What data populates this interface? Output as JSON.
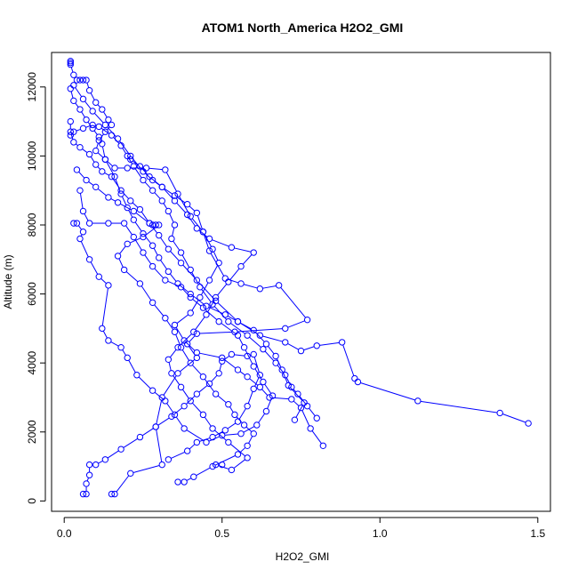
{
  "chart_data": {
    "type": "scatter",
    "title": "ATOM1 North_America H2O2_GMI",
    "xlabel": "H2O2_GMI",
    "ylabel": "Altitude (m)",
    "xlim": [
      -0.04,
      1.54
    ],
    "ylim": [
      -300,
      13000
    ],
    "xticks": [
      0,
      0.5,
      1,
      1.5
    ],
    "xtick_labels": [
      "0.0",
      "0.5",
      "1.0",
      "1.5"
    ],
    "yticks": [
      0,
      2000,
      4000,
      6000,
      8000,
      10000,
      12000
    ],
    "ytick_labels": [
      "0",
      "2000",
      "4000",
      "6000",
      "8000",
      "10000",
      "12000"
    ],
    "grid": false,
    "color": "#0000ff",
    "series": [
      {
        "points": [
          [
            0.02,
            12750
          ],
          [
            0.02,
            12700
          ],
          [
            0.02,
            12650
          ],
          [
            0.03,
            12350
          ],
          [
            0.04,
            12200
          ],
          [
            0.05,
            12200
          ],
          [
            0.06,
            12200
          ],
          [
            0.07,
            12200
          ],
          [
            0.08,
            11900
          ],
          [
            0.1,
            11550
          ],
          [
            0.12,
            11350
          ],
          [
            0.14,
            11050
          ],
          [
            0.15,
            10900
          ],
          [
            0.13,
            10700
          ],
          [
            0.11,
            10450
          ],
          [
            0.1,
            10150
          ],
          [
            0.13,
            9900
          ],
          [
            0.16,
            9650
          ],
          [
            0.2,
            9650
          ],
          [
            0.26,
            9650
          ],
          [
            0.32,
            9600
          ],
          [
            0.36,
            8900
          ],
          [
            0.4,
            8250
          ],
          [
            0.44,
            7800
          ],
          [
            0.47,
            7300
          ],
          [
            0.49,
            6900
          ],
          [
            0.46,
            6400
          ],
          [
            0.43,
            5900
          ],
          [
            0.4,
            5450
          ],
          [
            0.35,
            5100
          ],
          [
            0.38,
            4650
          ],
          [
            0.42,
            4300
          ],
          [
            0.5,
            4150
          ],
          [
            0.55,
            3800
          ],
          [
            0.58,
            3600
          ],
          [
            0.62,
            3300
          ],
          [
            0.65,
            3000
          ],
          [
            0.72,
            2950
          ],
          [
            0.75,
            2700
          ],
          [
            0.78,
            2100
          ],
          [
            0.82,
            1600
          ]
        ]
      },
      {
        "points": [
          [
            0.02,
            11950
          ],
          [
            0.03,
            11600
          ],
          [
            0.05,
            11350
          ],
          [
            0.07,
            11050
          ],
          [
            0.09,
            10800
          ],
          [
            0.11,
            10550
          ],
          [
            0.12,
            10350
          ],
          [
            0.13,
            9900
          ],
          [
            0.16,
            9400
          ],
          [
            0.18,
            8900
          ],
          [
            0.2,
            8500
          ],
          [
            0.22,
            8150
          ],
          [
            0.25,
            7750
          ],
          [
            0.28,
            7400
          ],
          [
            0.3,
            7050
          ],
          [
            0.33,
            6650
          ],
          [
            0.36,
            6300
          ],
          [
            0.4,
            6000
          ],
          [
            0.45,
            5650
          ],
          [
            0.51,
            5400
          ],
          [
            0.55,
            5200
          ],
          [
            0.6,
            4950
          ],
          [
            0.64,
            4550
          ],
          [
            0.67,
            4200
          ],
          [
            0.69,
            3800
          ],
          [
            0.71,
            3350
          ],
          [
            0.76,
            2850
          ],
          [
            0.73,
            2350
          ]
        ]
      },
      {
        "points": [
          [
            0.02,
            11000
          ],
          [
            0.02,
            10700
          ],
          [
            0.03,
            10400
          ],
          [
            0.05,
            10250
          ],
          [
            0.08,
            10050
          ],
          [
            0.1,
            9750
          ],
          [
            0.12,
            9550
          ],
          [
            0.15,
            9400
          ],
          [
            0.18,
            9000
          ],
          [
            0.21,
            8700
          ],
          [
            0.24,
            8450
          ],
          [
            0.27,
            8050
          ],
          [
            0.3,
            7700
          ],
          [
            0.33,
            7300
          ],
          [
            0.37,
            6900
          ],
          [
            0.42,
            6400
          ],
          [
            0.48,
            5800
          ],
          [
            0.55,
            5200
          ],
          [
            0.62,
            4800
          ],
          [
            0.7,
            4600
          ],
          [
            0.75,
            4350
          ],
          [
            0.8,
            4500
          ],
          [
            0.88,
            4600
          ],
          [
            0.92,
            3550
          ],
          [
            0.93,
            3450
          ],
          [
            1.12,
            2900
          ],
          [
            1.38,
            2550
          ],
          [
            1.47,
            2250
          ]
        ]
      },
      {
        "points": [
          [
            0.03,
            12050
          ],
          [
            0.06,
            11650
          ],
          [
            0.09,
            11300
          ],
          [
            0.13,
            10900
          ],
          [
            0.17,
            10500
          ],
          [
            0.21,
            10000
          ],
          [
            0.25,
            9550
          ],
          [
            0.28,
            9300
          ],
          [
            0.31,
            9100
          ],
          [
            0.35,
            8850
          ],
          [
            0.39,
            8600
          ],
          [
            0.42,
            8350
          ],
          [
            0.44,
            7800
          ],
          [
            0.46,
            7250
          ],
          [
            0.51,
            6450
          ],
          [
            0.56,
            6300
          ],
          [
            0.62,
            6150
          ],
          [
            0.68,
            6250
          ],
          [
            0.77,
            5250
          ],
          [
            0.7,
            5000
          ],
          [
            0.54,
            4900
          ],
          [
            0.42,
            4850
          ],
          [
            0.39,
            4550
          ],
          [
            0.42,
            4150
          ],
          [
            0.36,
            3700
          ],
          [
            0.31,
            3000
          ],
          [
            0.29,
            2150
          ],
          [
            0.31,
            1050
          ],
          [
            0.21,
            800
          ],
          [
            0.16,
            200
          ],
          [
            0.15,
            200
          ]
        ]
      },
      {
        "points": [
          [
            0.03,
            8050
          ],
          [
            0.04,
            8050
          ],
          [
            0.06,
            7800
          ],
          [
            0.05,
            7600
          ],
          [
            0.08,
            7000
          ],
          [
            0.11,
            6500
          ],
          [
            0.14,
            6250
          ],
          [
            0.12,
            5000
          ],
          [
            0.14,
            4650
          ],
          [
            0.18,
            4450
          ],
          [
            0.2,
            4150
          ],
          [
            0.23,
            3650
          ],
          [
            0.28,
            3200
          ],
          [
            0.32,
            2900
          ],
          [
            0.35,
            2500
          ],
          [
            0.38,
            2100
          ],
          [
            0.45,
            1700
          ],
          [
            0.5,
            1900
          ],
          [
            0.56,
            1950
          ],
          [
            0.61,
            2200
          ],
          [
            0.64,
            2600
          ],
          [
            0.66,
            3050
          ],
          [
            0.63,
            3450
          ],
          [
            0.6,
            3900
          ],
          [
            0.57,
            4450
          ],
          [
            0.55,
            4800
          ],
          [
            0.49,
            5200
          ],
          [
            0.44,
            5600
          ],
          [
            0.4,
            5900
          ],
          [
            0.37,
            6200
          ],
          [
            0.32,
            6400
          ],
          [
            0.28,
            6800
          ],
          [
            0.25,
            7200
          ],
          [
            0.22,
            7650
          ],
          [
            0.19,
            8050
          ],
          [
            0.14,
            8050
          ],
          [
            0.08,
            8050
          ],
          [
            0.06,
            8400
          ],
          [
            0.05,
            9000
          ]
        ]
      },
      {
        "points": [
          [
            0.04,
            9600
          ],
          [
            0.07,
            9300
          ],
          [
            0.1,
            9100
          ],
          [
            0.14,
            8800
          ],
          [
            0.17,
            8650
          ],
          [
            0.22,
            8400
          ],
          [
            0.27,
            8050
          ],
          [
            0.28,
            8000
          ],
          [
            0.29,
            8000
          ],
          [
            0.3,
            8000
          ],
          [
            0.25,
            7650
          ],
          [
            0.2,
            7450
          ],
          [
            0.17,
            7100
          ],
          [
            0.19,
            6700
          ],
          [
            0.24,
            6300
          ],
          [
            0.28,
            5750
          ],
          [
            0.32,
            5300
          ],
          [
            0.35,
            4900
          ],
          [
            0.37,
            4450
          ],
          [
            0.4,
            4000
          ],
          [
            0.44,
            3600
          ],
          [
            0.48,
            3100
          ],
          [
            0.52,
            2800
          ],
          [
            0.54,
            2500
          ],
          [
            0.57,
            2200
          ],
          [
            0.6,
            1950
          ],
          [
            0.58,
            1600
          ],
          [
            0.55,
            1350
          ],
          [
            0.47,
            1000
          ],
          [
            0.41,
            700
          ],
          [
            0.38,
            550
          ],
          [
            0.36,
            550
          ]
        ]
      },
      {
        "points": [
          [
            0.06,
            200
          ],
          [
            0.07,
            200
          ],
          [
            0.07,
            500
          ],
          [
            0.08,
            750
          ],
          [
            0.08,
            1050
          ],
          [
            0.1,
            1050
          ],
          [
            0.13,
            1200
          ],
          [
            0.18,
            1500
          ],
          [
            0.24,
            1850
          ],
          [
            0.29,
            2150
          ],
          [
            0.34,
            2450
          ],
          [
            0.38,
            2750
          ],
          [
            0.42,
            3100
          ],
          [
            0.46,
            3400
          ],
          [
            0.49,
            3700
          ],
          [
            0.5,
            4050
          ],
          [
            0.53,
            4250
          ],
          [
            0.58,
            4200
          ],
          [
            0.6,
            4250
          ],
          [
            0.62,
            3650
          ],
          [
            0.6,
            3250
          ],
          [
            0.58,
            2750
          ],
          [
            0.55,
            2300
          ],
          [
            0.51,
            2050
          ],
          [
            0.47,
            1850
          ],
          [
            0.42,
            1700
          ],
          [
            0.39,
            1450
          ],
          [
            0.33,
            1200
          ]
        ]
      },
      {
        "points": [
          [
            0.5,
            1050
          ],
          [
            0.48,
            1050
          ],
          [
            0.53,
            900
          ],
          [
            0.58,
            1250
          ],
          [
            0.52,
            1700
          ],
          [
            0.47,
            2100
          ],
          [
            0.44,
            2500
          ],
          [
            0.4,
            2900
          ],
          [
            0.37,
            3300
          ],
          [
            0.34,
            3700
          ],
          [
            0.33,
            4100
          ],
          [
            0.36,
            4450
          ],
          [
            0.41,
            4900
          ],
          [
            0.45,
            5400
          ],
          [
            0.48,
            5900
          ],
          [
            0.52,
            6350
          ],
          [
            0.56,
            6800
          ],
          [
            0.6,
            7200
          ],
          [
            0.53,
            7350
          ],
          [
            0.46,
            7600
          ],
          [
            0.42,
            7900
          ],
          [
            0.39,
            8300
          ],
          [
            0.35,
            8700
          ],
          [
            0.31,
            9100
          ],
          [
            0.27,
            9400
          ],
          [
            0.24,
            9700
          ],
          [
            0.21,
            9900
          ]
        ]
      },
      {
        "points": [
          [
            0.02,
            10600
          ],
          [
            0.03,
            10700
          ],
          [
            0.06,
            10800
          ],
          [
            0.09,
            10900
          ],
          [
            0.11,
            10850
          ],
          [
            0.15,
            10600
          ],
          [
            0.18,
            10300
          ],
          [
            0.2,
            10000
          ],
          [
            0.22,
            9700
          ],
          [
            0.25,
            9300
          ],
          [
            0.28,
            9000
          ],
          [
            0.31,
            8700
          ],
          [
            0.33,
            8400
          ],
          [
            0.35,
            8000
          ],
          [
            0.34,
            7600
          ],
          [
            0.37,
            7200
          ],
          [
            0.4,
            6700
          ],
          [
            0.43,
            6200
          ],
          [
            0.47,
            5700
          ],
          [
            0.52,
            5200
          ],
          [
            0.58,
            4800
          ],
          [
            0.63,
            4400
          ],
          [
            0.67,
            4000
          ],
          [
            0.7,
            3650
          ],
          [
            0.72,
            3300
          ],
          [
            0.74,
            3100
          ],
          [
            0.77,
            2750
          ],
          [
            0.8,
            2400
          ]
        ]
      }
    ]
  }
}
